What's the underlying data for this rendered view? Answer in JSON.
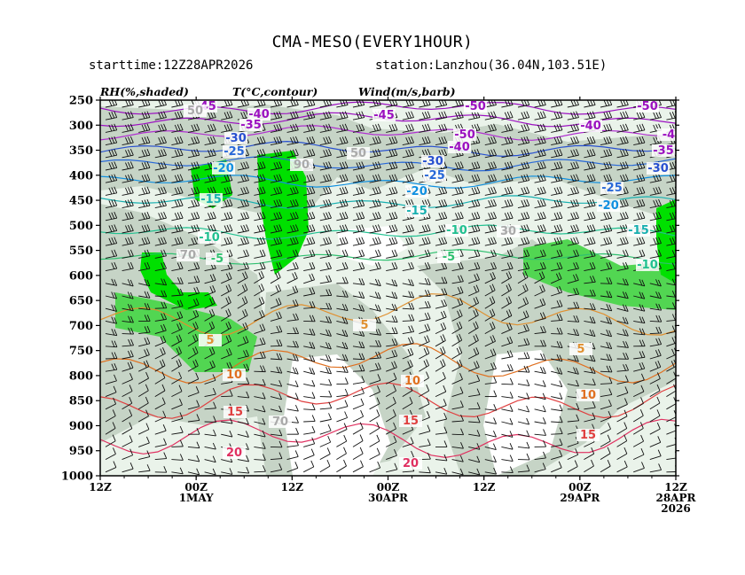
{
  "header": {
    "title": "CMA-MESO(EVERY1HOUR)",
    "starttime": "starttime:12Z28APR2026",
    "station": "station:Lanzhou(36.04N,103.51E)",
    "legend_rh": "RH(%,shaded)",
    "legend_t": "T(°C,contour)",
    "legend_wind": "Wind(m/s,barb)"
  },
  "chart_data": {
    "type": "heatmap",
    "title": "CMA-MESO(EVERY1HOUR)",
    "y_axis": {
      "label": "",
      "ticks": [
        "250",
        "300",
        "350",
        "400",
        "450",
        "500",
        "550",
        "600",
        "650",
        "700",
        "750",
        "800",
        "850",
        "900",
        "950",
        "1000"
      ],
      "range": [
        1000,
        250
      ],
      "orientation": "pressure decreasing upward"
    },
    "x_axis": {
      "direction": "time runs right-to-left",
      "ticks": [
        {
          "line1": "12Z",
          "line2": "",
          "line3": ""
        },
        {
          "line1": "00Z",
          "line2": "1MAY",
          "line3": ""
        },
        {
          "line1": "12Z",
          "line2": "",
          "line3": ""
        },
        {
          "line1": "00Z",
          "line2": "30APR",
          "line3": ""
        },
        {
          "line1": "12Z",
          "line2": "",
          "line3": ""
        },
        {
          "line1": "00Z",
          "line2": "29APR",
          "line3": ""
        },
        {
          "line1": "12Z",
          "line2": "28APR",
          "line3": "2026"
        }
      ]
    },
    "rh_shading_levels": [
      30,
      50,
      70,
      90
    ],
    "rh_colors": {
      "lt30": "#ffffff",
      "30": "#eaf3ea",
      "50": "#c6d4c6",
      "70": "#52d652",
      "90": "#00e000"
    },
    "temperature_contours": [
      {
        "level": -45,
        "color": "#9b10c0"
      },
      {
        "level": -40,
        "color": "#9b10c0"
      },
      {
        "level": -35,
        "color": "#b030d0"
      },
      {
        "level": -30,
        "color": "#2850d0"
      },
      {
        "level": -25,
        "color": "#2868d8"
      },
      {
        "level": -20,
        "color": "#1090e0"
      },
      {
        "level": -15,
        "color": "#18b0b0"
      },
      {
        "level": -10,
        "color": "#20c090"
      },
      {
        "level": -5,
        "color": "#30c070"
      },
      {
        "level": 5,
        "color": "#e09030"
      },
      {
        "level": 10,
        "color": "#e07020"
      },
      {
        "level": 15,
        "color": "#e04040"
      },
      {
        "level": 20,
        "color": "#e03060"
      }
    ],
    "contour_labels": [
      {
        "text": "-45",
        "color": "#9b10c0"
      },
      {
        "text": "-40",
        "color": "#9b10c0"
      },
      {
        "text": "-35",
        "color": "#9b10c0"
      },
      {
        "text": "-30",
        "color": "#2850d0"
      },
      {
        "text": "-25",
        "color": "#2868d8"
      },
      {
        "text": "-20",
        "color": "#1090e0"
      },
      {
        "text": "-15",
        "color": "#18b0b0"
      },
      {
        "text": "-10",
        "color": "#20c090"
      },
      {
        "text": "-5",
        "color": "#30c070"
      },
      {
        "text": "5",
        "color": "#e09030"
      },
      {
        "text": "10",
        "color": "#e07020"
      },
      {
        "text": "15",
        "color": "#e04040"
      },
      {
        "text": "20",
        "color": "#e03060"
      },
      {
        "text": "-50",
        "color": "#9b10c0"
      },
      {
        "text": "-4",
        "color": "#9b10c0"
      },
      {
        "text": "30",
        "color": "#aaaaaa"
      },
      {
        "text": "50",
        "color": "#aaaaaa"
      },
      {
        "text": "70",
        "color": "#aaaaaa"
      },
      {
        "text": "90",
        "color": "#aaaaaa"
      }
    ]
  }
}
